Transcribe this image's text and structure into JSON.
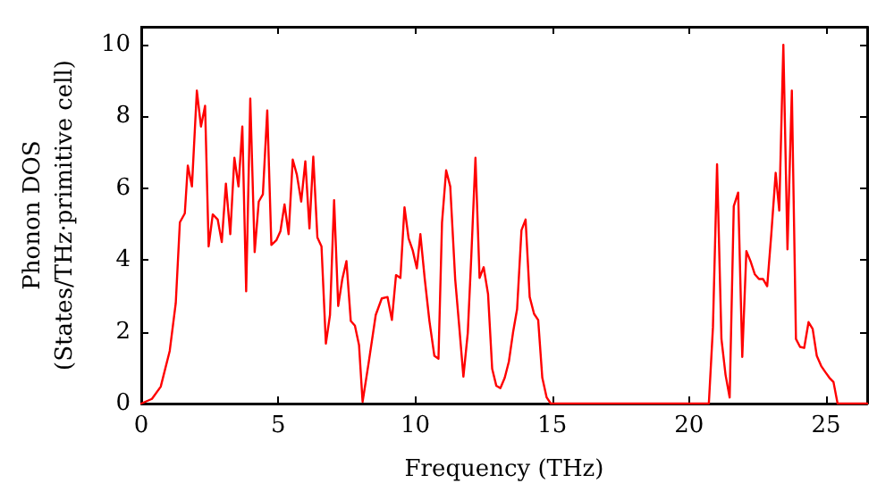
{
  "chart_data": {
    "type": "line",
    "xlabel": "Frequency (THz)",
    "ylabel": "Phonon DOS\n(States/THz·primitive cell)",
    "xlim": [
      0,
      26.5
    ],
    "ylim": [
      0,
      10.5
    ],
    "xticks": [
      0,
      5,
      10,
      15,
      20,
      25
    ],
    "yticks": [
      0,
      2,
      4,
      6,
      8,
      10
    ],
    "grid": false,
    "marker": "none",
    "line_style": "solid",
    "series": [
      {
        "color": "#ff0000",
        "x": [
          0,
          0.39,
          0.71,
          1.04,
          1.26,
          1.41,
          1.59,
          1.7,
          1.85,
          2.03,
          2.18,
          2.33,
          2.46,
          2.61,
          2.79,
          2.94,
          3.09,
          3.25,
          3.4,
          3.55,
          3.69,
          3.83,
          3.98,
          4.14,
          4.29,
          4.44,
          4.6,
          4.75,
          4.93,
          5.08,
          5.23,
          5.38,
          5.53,
          5.68,
          5.84,
          5.99,
          6.14,
          6.28,
          6.43,
          6.58,
          6.74,
          6.89,
          7.04,
          7.19,
          7.34,
          7.49,
          7.65,
          7.8,
          7.95,
          8.08,
          8.3,
          8.56,
          8.78,
          8.99,
          9.15,
          9.3,
          9.46,
          9.61,
          9.76,
          9.91,
          10.06,
          10.19,
          10.35,
          10.52,
          10.7,
          10.85,
          10.98,
          11.13,
          11.28,
          11.46,
          11.61,
          11.76,
          11.92,
          12.05,
          12.2,
          12.35,
          12.5,
          12.66,
          12.81,
          12.96,
          13.11,
          13.27,
          13.42,
          13.57,
          13.72,
          13.88,
          14.03,
          14.18,
          14.34,
          14.49,
          14.64,
          14.8,
          14.95,
          20.72,
          20.87,
          21.02,
          21.18,
          21.33,
          21.48,
          21.63,
          21.79,
          21.94,
          22.09,
          22.24,
          22.4,
          22.55,
          22.7,
          22.85,
          23.0,
          23.16,
          23.29,
          23.44,
          23.59,
          23.75,
          23.9,
          24.05,
          24.2,
          24.36,
          24.51,
          24.66,
          24.82,
          24.97,
          25.12,
          25.27,
          25.42,
          26.5
        ],
        "values": [
          0,
          0.13,
          0.47,
          1.47,
          2.8,
          5.05,
          5.3,
          6.63,
          6.05,
          8.72,
          7.72,
          8.3,
          4.38,
          5.27,
          5.13,
          4.5,
          6.13,
          4.72,
          6.85,
          6.05,
          7.72,
          3.13,
          8.5,
          4.22,
          5.63,
          5.83,
          8.17,
          4.42,
          4.55,
          4.8,
          5.55,
          4.72,
          6.8,
          6.38,
          5.63,
          6.75,
          4.88,
          6.88,
          4.63,
          4.38,
          1.67,
          2.47,
          5.67,
          2.72,
          3.47,
          3.97,
          2.3,
          2.17,
          1.63,
          0.05,
          1.13,
          2.47,
          2.93,
          2.97,
          2.33,
          3.58,
          3.5,
          5.47,
          4.6,
          4.27,
          3.77,
          4.72,
          3.47,
          2.3,
          1.33,
          1.25,
          5.05,
          6.5,
          6.05,
          3.47,
          2.13,
          0.75,
          1.97,
          4.13,
          6.85,
          3.5,
          3.8,
          3.05,
          0.97,
          0.5,
          0.43,
          0.72,
          1.17,
          1.97,
          2.63,
          4.83,
          5.13,
          2.97,
          2.5,
          2.33,
          0.72,
          0.17,
          0,
          0,
          2.13,
          6.67,
          1.8,
          0.8,
          0.17,
          5.5,
          5.88,
          1.3,
          4.25,
          3.97,
          3.6,
          3.47,
          3.47,
          3.27,
          4.72,
          6.43,
          5.38,
          10.0,
          4.3,
          8.72,
          1.8,
          1.58,
          1.55,
          2.27,
          2.08,
          1.33,
          1.05,
          0.88,
          0.72,
          0.6,
          0,
          0
        ]
      }
    ]
  }
}
